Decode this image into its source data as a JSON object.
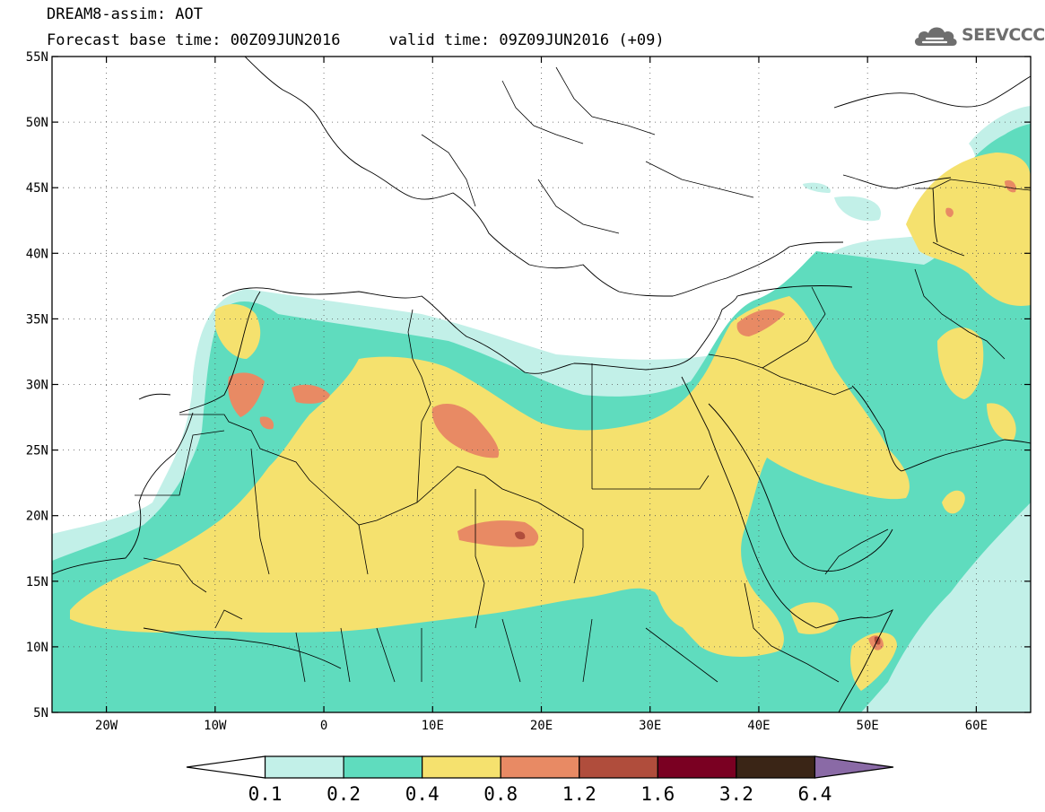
{
  "header": {
    "title": "DREAM8-assim: AOT",
    "base_time": "Forecast base time: 00Z09JUN2016",
    "valid_time": "valid time: 09Z09JUN2016 (+09)"
  },
  "logo": {
    "icon": "cloud-icon",
    "text": "SEEVCCC"
  },
  "map": {
    "lon_range": [
      -25,
      65
    ],
    "lat_range": [
      5,
      55
    ],
    "x_ticks": [
      {
        "lon": -20,
        "label": "20W"
      },
      {
        "lon": -10,
        "label": "10W"
      },
      {
        "lon": 0,
        "label": "0"
      },
      {
        "lon": 10,
        "label": "10E"
      },
      {
        "lon": 20,
        "label": "20E"
      },
      {
        "lon": 30,
        "label": "30E"
      },
      {
        "lon": 40,
        "label": "40E"
      },
      {
        "lon": 50,
        "label": "50E"
      },
      {
        "lon": 60,
        "label": "60E"
      }
    ],
    "y_ticks": [
      {
        "lat": 55,
        "label": "55N"
      },
      {
        "lat": 50,
        "label": "50N"
      },
      {
        "lat": 45,
        "label": "45N"
      },
      {
        "lat": 40,
        "label": "40N"
      },
      {
        "lat": 35,
        "label": "35N"
      },
      {
        "lat": 30,
        "label": "30N"
      },
      {
        "lat": 25,
        "label": "25N"
      },
      {
        "lat": 20,
        "label": "20N"
      },
      {
        "lat": 15,
        "label": "15N"
      },
      {
        "lat": 10,
        "label": "10N"
      },
      {
        "lat": 5,
        "label": "5N"
      }
    ],
    "grid": "dotted"
  },
  "colorbar": {
    "labels": [
      "0.1",
      "0.2",
      "0.4",
      "0.8",
      "1.2",
      "1.6",
      "3.2",
      "6.4"
    ],
    "colors": [
      "#ffffff",
      "#c2f0e8",
      "#5fdcbe",
      "#f5e16e",
      "#e88a64",
      "#b04d3c",
      "#7a0022",
      "#3a2516",
      "#8a6aa6"
    ]
  }
}
